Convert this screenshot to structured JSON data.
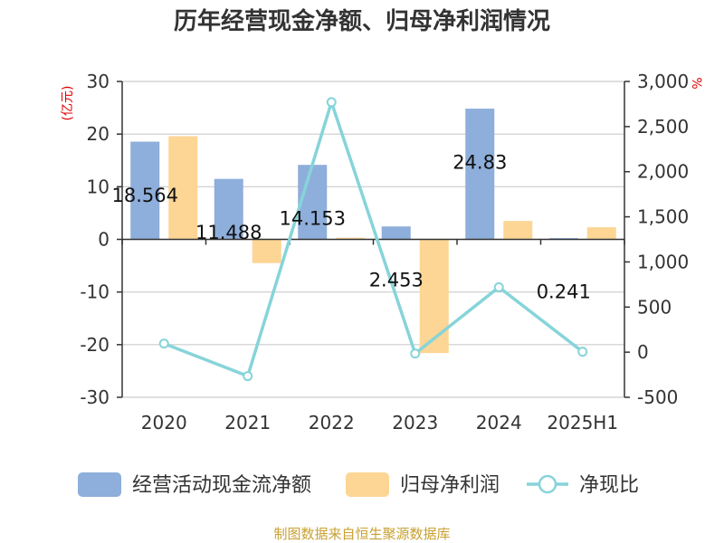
{
  "chart_data": {
    "type": "bar",
    "title": "历年经营现金净额、归母净利润情况",
    "categories": [
      "2020",
      "2021",
      "2022",
      "2023",
      "2024",
      "2025H1"
    ],
    "left_axis": {
      "unit": "(亿元)",
      "ylim": [
        -30,
        30
      ],
      "ticks": [
        30,
        20,
        10,
        0,
        -10,
        -20,
        -30
      ],
      "tick_labels": [
        "30",
        "20",
        "10",
        "0",
        "-10",
        "-20",
        "-30"
      ]
    },
    "right_axis": {
      "unit": "%",
      "ylim": [
        -500,
        3000
      ],
      "ticks": [
        3000,
        2500,
        2000,
        1500,
        1000,
        500,
        0,
        -500
      ],
      "tick_labels": [
        "3,000",
        "2,500",
        "2,000",
        "1,500",
        "1,000",
        "500",
        "0",
        "-500"
      ]
    },
    "series": [
      {
        "name": "经营活动现金流净额",
        "type": "bar",
        "axis": "left",
        "color": "#8eaedb",
        "values": [
          18.564,
          11.488,
          14.153,
          2.453,
          24.83,
          0.241
        ],
        "labels": [
          "18.564",
          "11.488",
          "14.153",
          "2.453",
          "24.83",
          "0.241"
        ]
      },
      {
        "name": "归母净利润",
        "type": "bar",
        "axis": "left",
        "color": "#fdd594",
        "values": [
          19.6,
          -4.5,
          0.3,
          -21.6,
          3.5,
          2.3
        ]
      },
      {
        "name": "净现比",
        "type": "line",
        "axis": "right",
        "color": "#86d4d9",
        "values": [
          95,
          -265,
          2770,
          -15,
          720,
          5
        ]
      }
    ],
    "grid": true,
    "legend_position": "bottom"
  },
  "source": "制图数据来自恒生聚源数据库"
}
